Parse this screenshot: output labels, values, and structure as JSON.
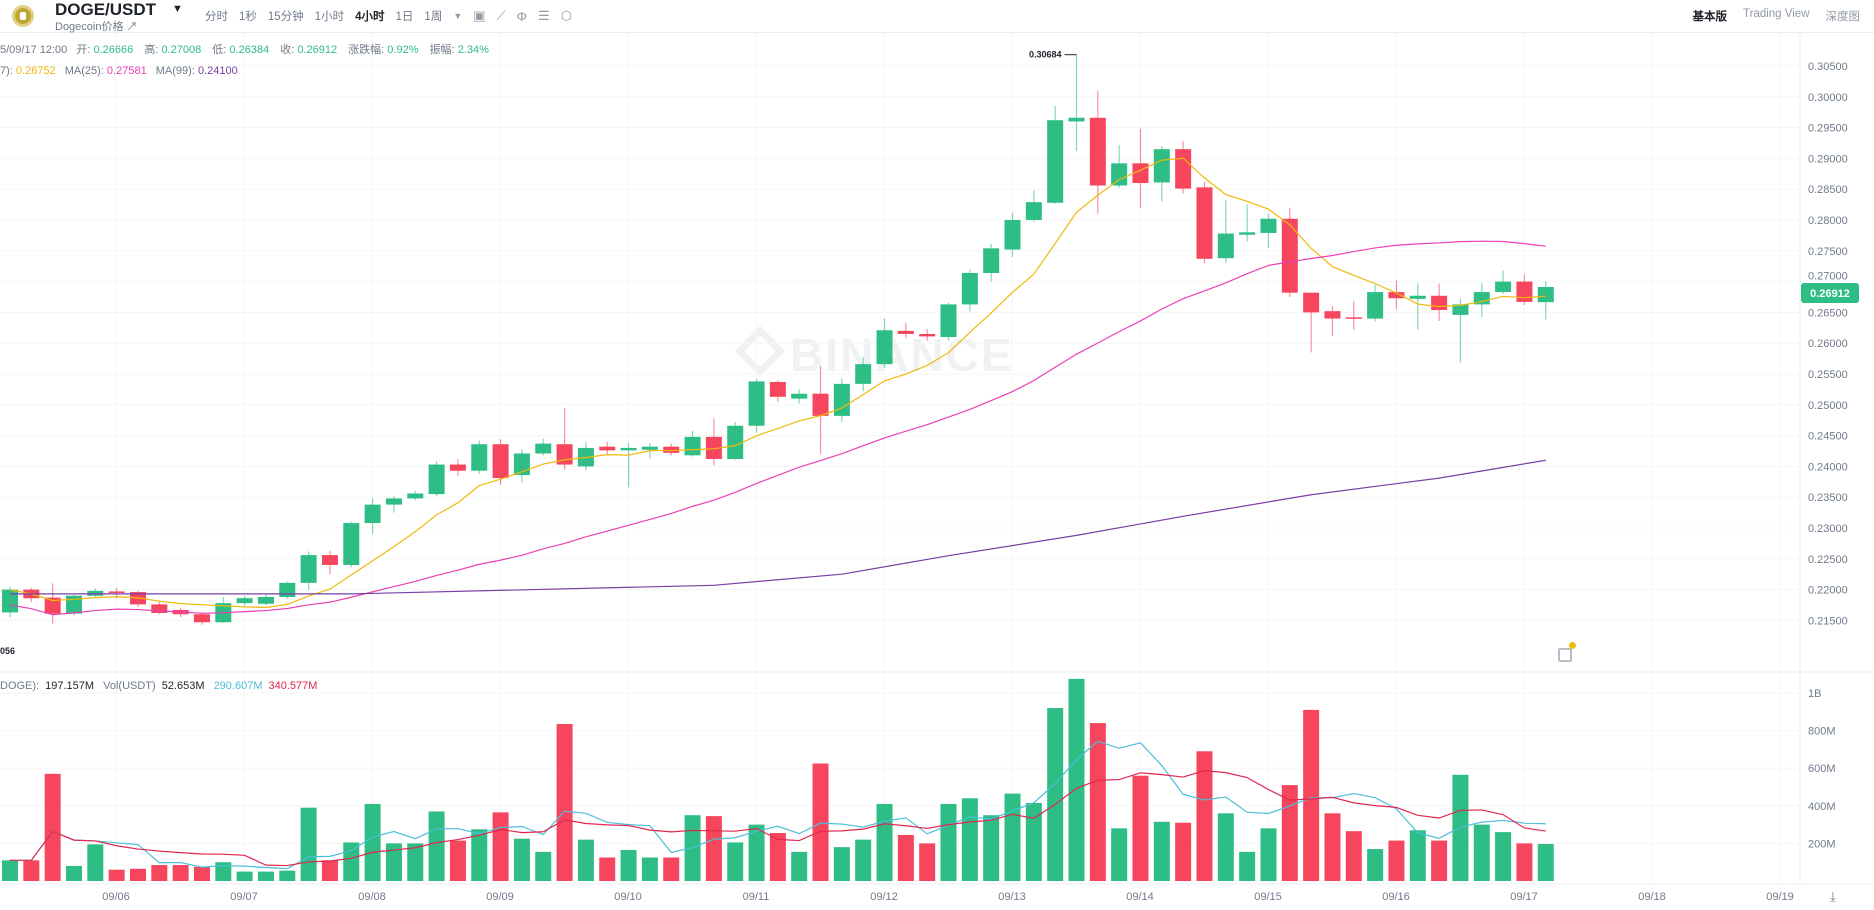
{
  "header": {
    "pair": "DOGE/USDT",
    "subtitle": "Dogecoin价格 ↗",
    "intervals": [
      "分时",
      "1秒",
      "15分钟",
      "1小时",
      "4小时",
      "1日",
      "1周"
    ],
    "active_interval": "4小时",
    "views": [
      "基本版",
      "Trading View",
      "深度图"
    ]
  },
  "info": {
    "time": "5/09/17 12:00",
    "open_label": "开:",
    "open": "0.26666",
    "high_label": "高:",
    "high": "0.27008",
    "low_label": "低:",
    "low": "0.26384",
    "close_label": "收:",
    "close": "0.26912",
    "change_label": "涨跌幅:",
    "change": "0.92%",
    "amp_label": "振幅:",
    "amp": "2.34%"
  },
  "ma": {
    "ma7_label": "7):",
    "ma7": "0.26752",
    "ma25_label": "MA(25):",
    "ma25": "0.27581",
    "ma99_label": "MA(99):",
    "ma99": "0.24100"
  },
  "vol": {
    "doge_label": "DOGE):",
    "doge": "197.157M",
    "usdt_label": "Vol(USDT)",
    "usdt": "52.653M",
    "ma1": "290.607M",
    "ma2": "340.577M"
  },
  "watermark": "BINANCE",
  "colors": {
    "up": "#2ebd85",
    "down": "#f6465d",
    "ma7": "#f0b90b",
    "ma25": "#eb40b5",
    "ma99": "#7a3ea5",
    "vma1": "#4cbfd9",
    "vma2": "#e1264f"
  },
  "chart_data": {
    "type": "candlestick",
    "price_ticks": [
      "0.30500",
      "0.30000",
      "0.29500",
      "0.29000",
      "0.28500",
      "0.28000",
      "0.27500",
      "0.27000",
      "0.26500",
      "0.26000",
      "0.25500",
      "0.25000",
      "0.24500",
      "0.24000",
      "0.23500",
      "0.23000",
      "0.22500",
      "0.22000",
      "0.21500"
    ],
    "volume_ticks": [
      "1B",
      "800M",
      "600M",
      "400M",
      "200M"
    ],
    "dates": [
      "09/06",
      "09/07",
      "09/08",
      "09/09",
      "09/10",
      "09/11",
      "09/12",
      "09/13",
      "09/14",
      "09/15",
      "09/16",
      "09/17",
      "09/18",
      "09/19"
    ],
    "current_price": "0.26912",
    "high_marker": "0.30684",
    "low_marker": "056",
    "candles": [
      [
        0.2163,
        0.2205,
        0.2155,
        0.22
      ],
      [
        0.22,
        0.2203,
        0.218,
        0.2186
      ],
      [
        0.2187,
        0.221,
        0.2145,
        0.2161
      ],
      [
        0.2161,
        0.2192,
        0.2158,
        0.219
      ],
      [
        0.219,
        0.2202,
        0.2187,
        0.2198
      ],
      [
        0.2197,
        0.2203,
        0.2186,
        0.2195
      ],
      [
        0.2196,
        0.2198,
        0.2172,
        0.2176
      ],
      [
        0.2176,
        0.218,
        0.216,
        0.2162
      ],
      [
        0.2167,
        0.217,
        0.2155,
        0.216
      ],
      [
        0.216,
        0.2163,
        0.2143,
        0.2147
      ],
      [
        0.2147,
        0.2188,
        0.2146,
        0.2178
      ],
      [
        0.2178,
        0.219,
        0.2174,
        0.2186
      ],
      [
        0.2177,
        0.2192,
        0.2174,
        0.2188
      ],
      [
        0.2188,
        0.2213,
        0.2185,
        0.2211
      ],
      [
        0.2211,
        0.2262,
        0.22,
        0.2256
      ],
      [
        0.2256,
        0.2263,
        0.2225,
        0.224
      ],
      [
        0.224,
        0.231,
        0.2236,
        0.2308
      ],
      [
        0.2308,
        0.2348,
        0.229,
        0.2338
      ],
      [
        0.2338,
        0.2352,
        0.2325,
        0.2348
      ],
      [
        0.2348,
        0.236,
        0.2345,
        0.2356
      ],
      [
        0.2355,
        0.2408,
        0.2352,
        0.2403
      ],
      [
        0.2403,
        0.2412,
        0.2385,
        0.2393
      ],
      [
        0.2393,
        0.2442,
        0.2388,
        0.2436
      ],
      [
        0.2436,
        0.2444,
        0.237,
        0.2381
      ],
      [
        0.2386,
        0.2428,
        0.2374,
        0.2421
      ],
      [
        0.2421,
        0.2445,
        0.2418,
        0.2437
      ],
      [
        0.2436,
        0.2495,
        0.2395,
        0.2403
      ],
      [
        0.24,
        0.244,
        0.2393,
        0.243
      ],
      [
        0.2432,
        0.244,
        0.2419,
        0.2426
      ],
      [
        0.2426,
        0.2438,
        0.2366,
        0.243
      ],
      [
        0.2427,
        0.2438,
        0.2412,
        0.2432
      ],
      [
        0.2432,
        0.2437,
        0.2418,
        0.2422
      ],
      [
        0.2418,
        0.2458,
        0.2416,
        0.2448
      ],
      [
        0.2448,
        0.2478,
        0.2402,
        0.2412
      ],
      [
        0.2412,
        0.2472,
        0.241,
        0.2466
      ],
      [
        0.2466,
        0.2542,
        0.2455,
        0.2538
      ],
      [
        0.2537,
        0.254,
        0.2505,
        0.2513
      ],
      [
        0.251,
        0.2525,
        0.2502,
        0.2518
      ],
      [
        0.2518,
        0.2563,
        0.242,
        0.2482
      ],
      [
        0.2482,
        0.2543,
        0.2472,
        0.2534
      ],
      [
        0.2534,
        0.2578,
        0.2522,
        0.2566
      ],
      [
        0.2566,
        0.264,
        0.256,
        0.2621
      ],
      [
        0.262,
        0.2633,
        0.2608,
        0.2615
      ],
      [
        0.2615,
        0.2623,
        0.2604,
        0.2611
      ],
      [
        0.261,
        0.2666,
        0.2604,
        0.2663
      ],
      [
        0.2663,
        0.272,
        0.2652,
        0.2714
      ],
      [
        0.2714,
        0.2761,
        0.27,
        0.2754
      ],
      [
        0.2752,
        0.2812,
        0.274,
        0.28
      ],
      [
        0.28,
        0.2848,
        0.2797,
        0.2829
      ],
      [
        0.2828,
        0.2985,
        0.2826,
        0.2962
      ],
      [
        0.296,
        0.30684,
        0.2912,
        0.2966
      ],
      [
        0.2966,
        0.301,
        0.281,
        0.2856
      ],
      [
        0.2856,
        0.2922,
        0.2852,
        0.2892
      ],
      [
        0.2892,
        0.2948,
        0.282,
        0.286
      ],
      [
        0.2861,
        0.292,
        0.283,
        0.2915
      ],
      [
        0.2915,
        0.2928,
        0.2843,
        0.2851
      ],
      [
        0.2853,
        0.2862,
        0.273,
        0.2737
      ],
      [
        0.2738,
        0.2832,
        0.273,
        0.2778
      ],
      [
        0.2776,
        0.2825,
        0.2765,
        0.278
      ],
      [
        0.2779,
        0.281,
        0.2755,
        0.2802
      ],
      [
        0.2802,
        0.282,
        0.2675,
        0.2682
      ],
      [
        0.2682,
        0.2682,
        0.2585,
        0.265
      ],
      [
        0.2652,
        0.266,
        0.2612,
        0.264
      ],
      [
        0.2642,
        0.2668,
        0.2622,
        0.264
      ],
      [
        0.264,
        0.2695,
        0.2635,
        0.2683
      ],
      [
        0.2683,
        0.2702,
        0.2655,
        0.2673
      ],
      [
        0.2672,
        0.2697,
        0.2622,
        0.2677
      ],
      [
        0.2677,
        0.2697,
        0.2636,
        0.2654
      ],
      [
        0.2646,
        0.2672,
        0.2569,
        0.2663
      ],
      [
        0.2663,
        0.2697,
        0.2643,
        0.2683
      ],
      [
        0.2683,
        0.2718,
        0.268,
        0.27
      ],
      [
        0.27,
        0.2712,
        0.2662,
        0.2667
      ],
      [
        0.26666,
        0.27008,
        0.26384,
        0.26912
      ]
    ],
    "volumes": [
      110,
      110,
      570,
      80,
      195,
      60,
      65,
      85,
      85,
      75,
      100,
      50,
      50,
      55,
      390,
      110,
      205,
      410,
      200,
      200,
      370,
      215,
      275,
      365,
      225,
      155,
      835,
      220,
      125,
      165,
      125,
      125,
      350,
      345,
      205,
      300,
      255,
      155,
      625,
      180,
      220,
      410,
      245,
      200,
      410,
      440,
      350,
      465,
      415,
      920,
      1075,
      840,
      280,
      560,
      315,
      310,
      690,
      360,
      155,
      280,
      510,
      910,
      360,
      265,
      170,
      215,
      270,
      215,
      565,
      300,
      260,
      200,
      197
    ],
    "ma99": [
      [
        0,
        0.2193
      ],
      [
        16,
        0.2193
      ],
      [
        33,
        0.2207
      ],
      [
        39,
        0.2225
      ],
      [
        44,
        0.2255
      ],
      [
        50,
        0.2288
      ],
      [
        55,
        0.2319
      ],
      [
        61,
        0.2354
      ],
      [
        67,
        0.2381
      ],
      [
        72,
        0.241
      ]
    ]
  }
}
